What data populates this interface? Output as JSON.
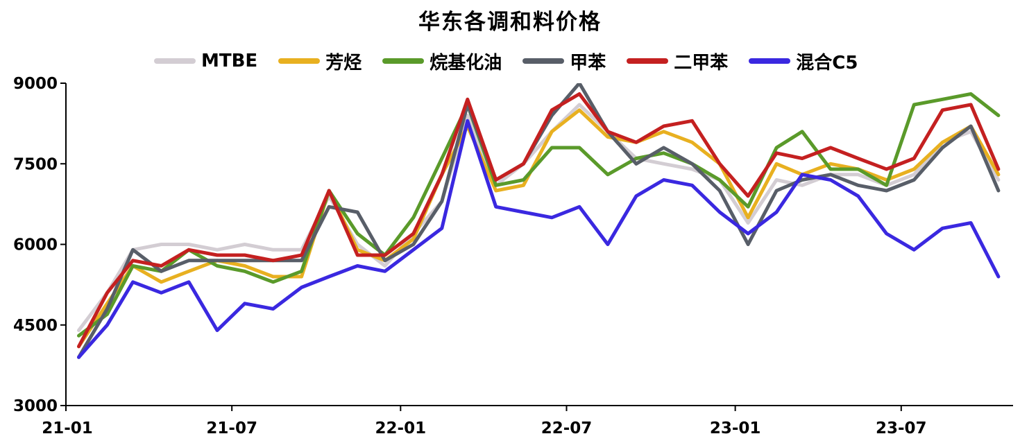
{
  "chart_data": {
    "type": "line",
    "title": "华东各调和料价格",
    "xlabel": "",
    "ylabel": "",
    "ylim": [
      3000,
      9000
    ],
    "yticks": [
      3000,
      4500,
      6000,
      7500,
      9000
    ],
    "xticks": [
      "21-01",
      "21-07",
      "22-01",
      "22-07",
      "23-01",
      "23-07"
    ],
    "xlim": [
      "2021-01-01",
      "2023-10-31"
    ],
    "grid": false,
    "legend_position": "top",
    "x": [
      "2021-01",
      "2021-02",
      "2021-03",
      "2021-04",
      "2021-05",
      "2021-06",
      "2021-07",
      "2021-08",
      "2021-09",
      "2021-10",
      "2021-11",
      "2021-12",
      "2022-01",
      "2022-02",
      "2022-03",
      "2022-04",
      "2022-05",
      "2022-06",
      "2022-07",
      "2022-08",
      "2022-09",
      "2022-10",
      "2022-11",
      "2022-12",
      "2023-01",
      "2023-02",
      "2023-03",
      "2023-04",
      "2023-05",
      "2023-06",
      "2023-07",
      "2023-08",
      "2023-09",
      "2023-10"
    ],
    "series": [
      {
        "name": "MTBE",
        "color": "#d3cdd3",
        "values": [
          4400,
          5100,
          5900,
          6000,
          6000,
          5900,
          6000,
          5900,
          5900,
          6900,
          6000,
          5600,
          6200,
          6800,
          8400,
          7100,
          7500,
          8100,
          8600,
          8100,
          7600,
          7500,
          7400,
          7200,
          6400,
          7200,
          7100,
          7300,
          7300,
          7100,
          7300,
          7900,
          8100,
          7200
        ]
      },
      {
        "name": "芳烃",
        "color": "#e8b020",
        "values": [
          4100,
          4900,
          5600,
          5300,
          5500,
          5700,
          5600,
          5400,
          5400,
          7000,
          5900,
          5700,
          6100,
          7300,
          8200,
          7000,
          7100,
          8100,
          8500,
          8000,
          7900,
          8100,
          7900,
          7500,
          6500,
          7500,
          7300,
          7500,
          7400,
          7200,
          7400,
          7900,
          8200,
          7300
        ]
      },
      {
        "name": "烷基化油",
        "color": "#5a9a2a",
        "values": [
          4300,
          4700,
          5600,
          5500,
          5900,
          5600,
          5500,
          5300,
          5500,
          7000,
          6200,
          5800,
          6500,
          7600,
          8600,
          7100,
          7200,
          7800,
          7800,
          7300,
          7600,
          7700,
          7500,
          7200,
          6700,
          7800,
          8100,
          7400,
          7400,
          7100,
          8600,
          8700,
          8800,
          8400
        ]
      },
      {
        "name": "甲苯",
        "color": "#585e68",
        "values": [
          3900,
          4800,
          5900,
          5500,
          5700,
          5700,
          5700,
          5700,
          5700,
          6700,
          6600,
          5700,
          6000,
          6800,
          8600,
          7200,
          7500,
          8400,
          9000,
          8100,
          7500,
          7800,
          7500,
          7000,
          6000,
          7000,
          7200,
          7300,
          7100,
          7000,
          7200,
          7800,
          8200,
          7000
        ]
      },
      {
        "name": "二甲苯",
        "color": "#c42020",
        "values": [
          4100,
          5100,
          5700,
          5600,
          5900,
          5800,
          5800,
          5700,
          5800,
          7000,
          5800,
          5800,
          6200,
          7300,
          8700,
          7200,
          7500,
          8500,
          8800,
          8100,
          7900,
          8200,
          8300,
          7500,
          6900,
          7700,
          7600,
          7800,
          7600,
          7400,
          7600,
          8500,
          8600,
          7400
        ]
      },
      {
        "name": "混合C5",
        "color": "#3a28e0",
        "values": [
          3900,
          4500,
          5300,
          5100,
          5300,
          4400,
          4900,
          4800,
          5200,
          5400,
          5600,
          5500,
          5900,
          6300,
          8300,
          6700,
          6600,
          6500,
          6700,
          6000,
          6900,
          7200,
          7100,
          6600,
          6200,
          6600,
          7300,
          7200,
          6900,
          6200,
          5900,
          6300,
          6400,
          5400
        ]
      }
    ]
  }
}
